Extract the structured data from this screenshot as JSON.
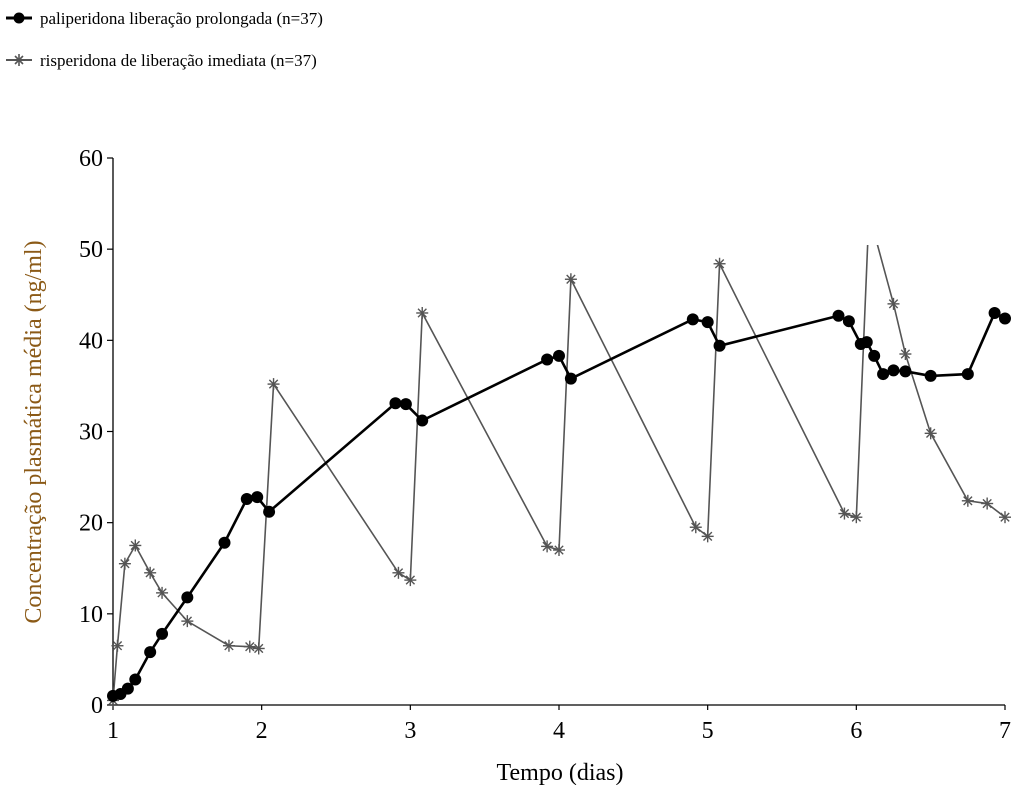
{
  "legend": {
    "items": [
      {
        "label": "paliperidona liberação prolongada (n=37)",
        "marker": "filled-circle"
      },
      {
        "label": "risperidona de liberação imediata (n=37)",
        "marker": "asterisk"
      }
    ]
  },
  "colors": {
    "ylabel": "#8b5a17",
    "lines": "#000000",
    "risp_line": "#555555",
    "background": "#ffffff"
  },
  "chart_data": {
    "type": "line",
    "xlabel": "Tempo (dias)",
    "ylabel": "Concentração plasmática média (ng/ml)",
    "xlim": [
      1,
      7
    ],
    "ylim": [
      0,
      60
    ],
    "xticks": [
      "1",
      "2",
      "3",
      "4",
      "5",
      "6",
      "7"
    ],
    "yticks": [
      "0",
      "10",
      "20",
      "30",
      "40",
      "50",
      "60"
    ],
    "grid": false,
    "legend_position": "top-left",
    "series": [
      {
        "name": "paliperidona liberação prolongada (n=37)",
        "marker": "filled-circle",
        "points": [
          [
            1.0,
            1.0
          ],
          [
            1.05,
            1.2
          ],
          [
            1.1,
            1.8
          ],
          [
            1.15,
            2.8
          ],
          [
            1.25,
            5.8
          ],
          [
            1.33,
            7.8
          ],
          [
            1.5,
            11.8
          ],
          [
            1.75,
            17.8
          ],
          [
            1.9,
            22.6
          ],
          [
            1.97,
            22.8
          ],
          [
            2.05,
            21.2
          ],
          [
            2.9,
            33.1
          ],
          [
            2.97,
            33.0
          ],
          [
            3.08,
            31.2
          ],
          [
            3.92,
            37.9
          ],
          [
            4.0,
            38.3
          ],
          [
            4.08,
            35.8
          ],
          [
            4.9,
            42.3
          ],
          [
            5.0,
            42.0
          ],
          [
            5.08,
            39.4
          ],
          [
            5.88,
            42.7
          ],
          [
            5.95,
            42.1
          ],
          [
            6.03,
            39.6
          ],
          [
            6.07,
            39.8
          ],
          [
            6.12,
            38.3
          ],
          [
            6.18,
            36.3
          ],
          [
            6.25,
            36.7
          ],
          [
            6.33,
            36.6
          ],
          [
            6.5,
            36.1
          ],
          [
            6.75,
            36.3
          ],
          [
            6.93,
            43.0
          ],
          [
            7.0,
            42.4
          ]
        ]
      },
      {
        "name": "risperidona de liberação imediata (n=37)",
        "marker": "asterisk",
        "points": [
          [
            1.0,
            0.5
          ],
          [
            1.03,
            6.5
          ],
          [
            1.08,
            15.5
          ],
          [
            1.15,
            17.5
          ],
          [
            1.25,
            14.5
          ],
          [
            1.33,
            12.3
          ],
          [
            1.5,
            9.2
          ],
          [
            1.78,
            6.5
          ],
          [
            1.92,
            6.4
          ],
          [
            1.98,
            6.2
          ],
          [
            2.08,
            35.2
          ],
          [
            2.92,
            14.5
          ],
          [
            3.0,
            13.7
          ],
          [
            3.08,
            43.0
          ],
          [
            3.92,
            17.4
          ],
          [
            4.0,
            17.0
          ],
          [
            4.08,
            46.7
          ],
          [
            4.92,
            19.5
          ],
          [
            5.0,
            18.5
          ],
          [
            5.08,
            48.4
          ],
          [
            5.92,
            21.0
          ],
          [
            6.0,
            20.6
          ],
          [
            6.08,
            52.0
          ],
          [
            6.12,
            51.8
          ],
          [
            6.25,
            44.0
          ],
          [
            6.33,
            38.5
          ],
          [
            6.5,
            29.8
          ],
          [
            6.75,
            22.4
          ],
          [
            6.88,
            22.1
          ],
          [
            7.0,
            20.6
          ]
        ]
      }
    ]
  }
}
